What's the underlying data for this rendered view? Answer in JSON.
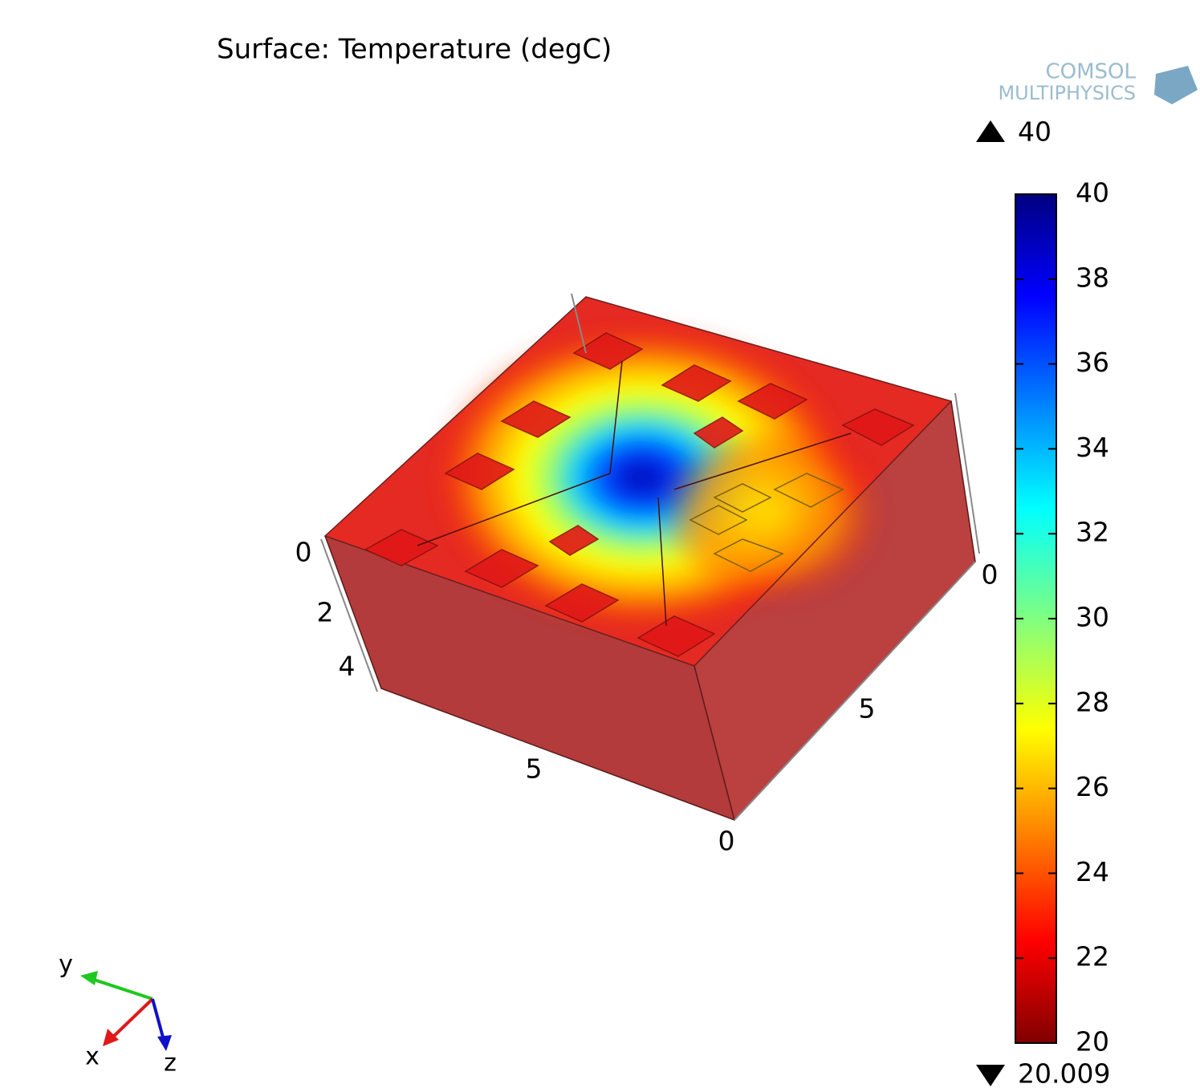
{
  "chart_data": {
    "type": "surface",
    "title": "Surface: Temperature (degC)",
    "logo": [
      "COMSOL",
      "MULTIPHYSICS"
    ],
    "clim": [
      20,
      40
    ],
    "cticks": [
      20,
      22,
      24,
      26,
      28,
      30,
      32,
      34,
      36,
      38,
      40
    ],
    "max": 40,
    "min": 20.009,
    "box_ticks": {
      "depth": [
        0,
        2,
        4
      ],
      "front": [
        5,
        0
      ],
      "side": [
        0,
        5
      ]
    },
    "triad": {
      "x": "x",
      "y": "y",
      "z": "z"
    }
  }
}
